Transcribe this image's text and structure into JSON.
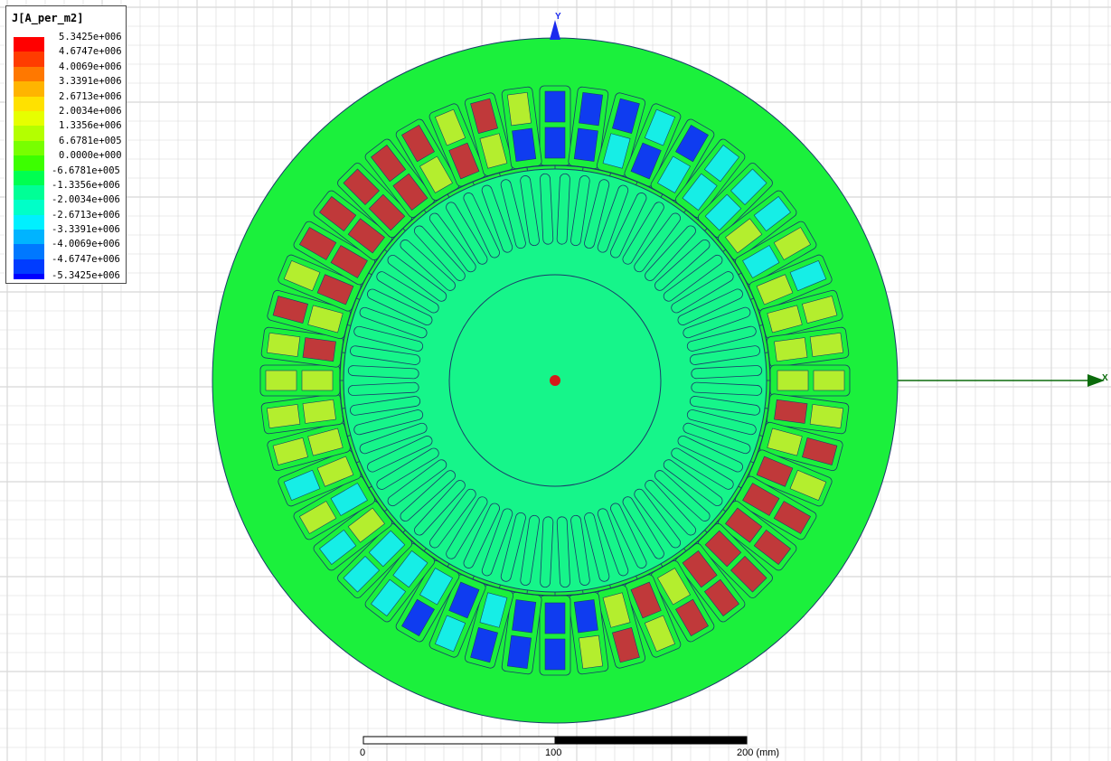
{
  "legend": {
    "title": "J[A_per_m2]",
    "entries": [
      {
        "label": "5.3425e+006",
        "color": "#ff0000"
      },
      {
        "label": "4.6747e+006",
        "color": "#ff3c00"
      },
      {
        "label": "4.0069e+006",
        "color": "#ff7800"
      },
      {
        "label": "3.3391e+006",
        "color": "#ffb400"
      },
      {
        "label": "2.6713e+006",
        "color": "#ffe100"
      },
      {
        "label": "2.0034e+006",
        "color": "#e6ff00"
      },
      {
        "label": "1.3356e+006",
        "color": "#b4ff00"
      },
      {
        "label": "6.6781e+005",
        "color": "#78ff00"
      },
      {
        "label": "0.0000e+000",
        "color": "#3cff00"
      },
      {
        "label": "-6.6781e+005",
        "color": "#00ff50"
      },
      {
        "label": "-1.3356e+006",
        "color": "#00ff96"
      },
      {
        "label": "-2.0034e+006",
        "color": "#00ffc8"
      },
      {
        "label": "-2.6713e+006",
        "color": "#00f0ff"
      },
      {
        "label": "-3.3391e+006",
        "color": "#00b4ff"
      },
      {
        "label": "-4.0069e+006",
        "color": "#0078ff"
      },
      {
        "label": "-4.6747e+006",
        "color": "#003cff"
      }
    ],
    "last_label": "-5.3425e+006",
    "last_color": "#0000ff"
  },
  "axes": {
    "x_label": "X",
    "y_label": "Y"
  },
  "scale_bar": {
    "label_0": "0",
    "label_100": "100",
    "label_200": "200 (mm)"
  },
  "colors": {
    "grid": "#d8d8d8",
    "stator": "#1bf03c",
    "rotor": "#16f58a",
    "outline": "#1a3a6a",
    "coil_red": "#c0393a",
    "coil_yellow": "#b4ee2e",
    "coil_blue": "#0f3cf0",
    "coil_cyan": "#16eee6",
    "x_axis": "#0b6b0b",
    "y_axis": "#1a2aee",
    "center_mark": "#d41a1a"
  },
  "slots": {
    "count": 48,
    "coil_pattern": [
      "blue",
      "blue",
      "blue",
      "cyan",
      "blue",
      "cyan",
      "cyan",
      "cyan",
      "yellow",
      "cyan",
      "yellow",
      "yellow",
      "yellow",
      "yellow",
      "red",
      "yellow",
      "red",
      "red",
      "red",
      "red",
      "red",
      "yellow",
      "red",
      "yellow"
    ]
  }
}
